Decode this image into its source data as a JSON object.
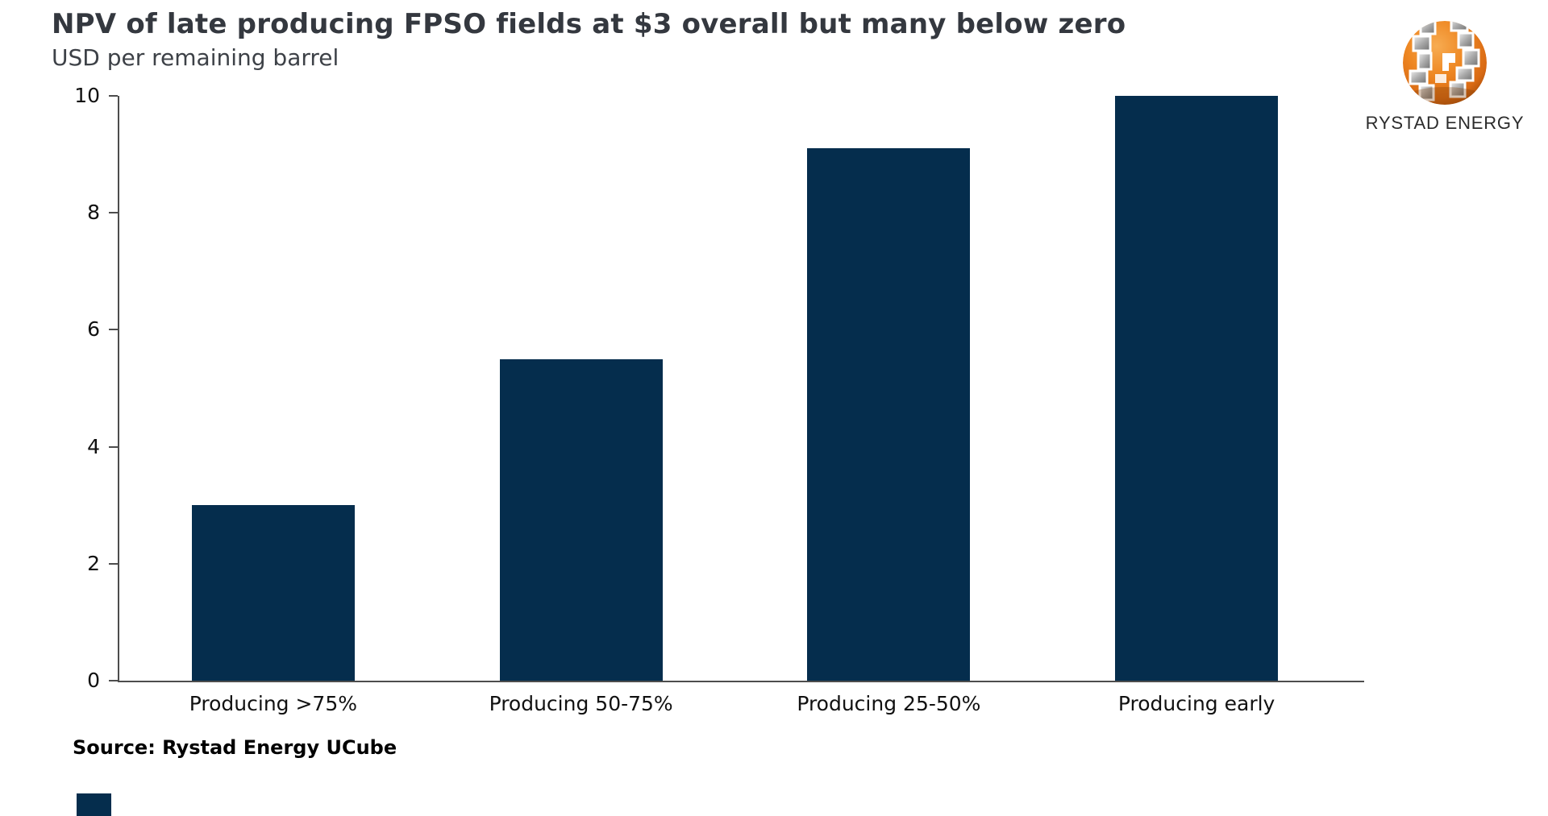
{
  "page": {
    "background": "#ffffff"
  },
  "header": {
    "title": "NPV of late producing FPSO fields at $3 overall but many below zero",
    "subtitle": "USD per remaining barrel"
  },
  "logo": {
    "text": "RYSTAD ENERGY",
    "globe_icon": "globe-icon",
    "colors": {
      "orange": "#EE8722",
      "gray": "#A9A9A9",
      "text": "#2B2B2B"
    }
  },
  "source": {
    "label": "Source: Rystad Energy UCube"
  },
  "footer": {
    "accent_color": "#052D4D"
  },
  "chart_data": {
    "type": "bar",
    "title": "NPV of late producing FPSO fields at $3 overall but many below zero",
    "ylabel_unit": "USD per remaining barrel",
    "categories": [
      "Producing >75%",
      "Producing 50-75%",
      "Producing 25-50%",
      "Producing early"
    ],
    "values": [
      3.0,
      5.5,
      9.1,
      10.0
    ],
    "ylim": [
      0,
      10
    ],
    "yticks": [
      0,
      2,
      4,
      6,
      8,
      10
    ],
    "grid": false,
    "legend": null,
    "bar_color": "#052D4D",
    "axis_color": "#4D4D4D"
  }
}
